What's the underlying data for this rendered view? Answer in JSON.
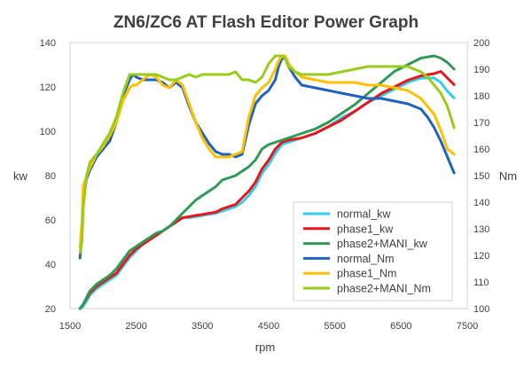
{
  "chart_data": {
    "type": "line",
    "title": "ZN6/ZC6 AT  Flash Editor Power Graph",
    "xlabel": "rpm",
    "ylabel_left": "kw",
    "ylabel_right": "Nm",
    "xlim": [
      1500,
      7500
    ],
    "ylim_left": [
      20,
      140
    ],
    "ylim_right": [
      100,
      200
    ],
    "x_ticks": [
      "1500",
      "2500",
      "3500",
      "4500",
      "5500",
      "6500",
      "7500"
    ],
    "y_ticks_left": [
      "20",
      "40",
      "60",
      "80",
      "100",
      "120",
      "140"
    ],
    "y_ticks_right": [
      "100",
      "110",
      "120",
      "130",
      "140",
      "150",
      "160",
      "170",
      "180",
      "190",
      "200"
    ],
    "grid": false,
    "legend_position": "bottom-right",
    "series": [
      {
        "name": "normal_kw",
        "axis": "left",
        "color": "#33ccee",
        "x": [
          1650,
          1700,
          1800,
          1900,
          2000,
          2100,
          2200,
          2300,
          2400,
          2500,
          2600,
          2700,
          2800,
          2900,
          3000,
          3100,
          3200,
          3300,
          3400,
          3500,
          3600,
          3700,
          3800,
          3900,
          4000,
          4100,
          4200,
          4300,
          4400,
          4500,
          4600,
          4700,
          4800,
          4900,
          5000,
          5200,
          5400,
          5600,
          5800,
          6000,
          6200,
          6400,
          6600,
          6800,
          7000,
          7100,
          7200,
          7300
        ],
        "y": [
          20,
          21,
          26,
          29,
          31,
          33,
          35,
          39,
          43,
          46,
          49,
          51,
          53,
          55,
          57,
          59,
          61,
          61,
          61.5,
          62,
          62.5,
          63,
          64,
          65,
          66,
          68,
          71,
          75,
          81,
          85,
          90,
          94,
          95,
          96,
          97,
          99,
          102,
          106,
          109,
          113,
          116,
          119,
          122,
          124,
          124,
          122,
          118,
          115
        ]
      },
      {
        "name": "phase1_kw",
        "axis": "left",
        "color": "#e8161b",
        "x": [
          1650,
          1700,
          1800,
          1900,
          2000,
          2100,
          2200,
          2300,
          2400,
          2500,
          2600,
          2700,
          2800,
          2900,
          3000,
          3100,
          3200,
          3300,
          3400,
          3500,
          3600,
          3700,
          3800,
          3900,
          4000,
          4100,
          4200,
          4300,
          4400,
          4500,
          4600,
          4700,
          4800,
          4900,
          5000,
          5200,
          5400,
          5600,
          5800,
          6000,
          6200,
          6400,
          6600,
          6800,
          7000,
          7100,
          7200,
          7300
        ],
        "y": [
          20,
          22,
          27,
          30,
          32,
          34,
          36,
          40,
          44,
          47,
          49,
          51,
          53,
          55,
          57,
          59,
          61,
          61.5,
          62,
          62.5,
          63,
          63.5,
          65,
          66,
          67,
          70,
          73,
          77,
          83,
          87,
          92,
          95,
          96,
          96.5,
          97,
          99,
          102,
          105,
          109,
          113,
          117,
          120,
          123,
          125,
          126,
          127,
          124,
          121
        ]
      },
      {
        "name": "phase2+MANI_kw",
        "axis": "left",
        "color": "#2e9a56",
        "x": [
          1650,
          1700,
          1800,
          1900,
          2000,
          2100,
          2200,
          2300,
          2400,
          2500,
          2600,
          2700,
          2800,
          2900,
          3000,
          3100,
          3200,
          3300,
          3400,
          3500,
          3600,
          3700,
          3800,
          3900,
          4000,
          4100,
          4200,
          4300,
          4400,
          4500,
          4600,
          4700,
          4800,
          4900,
          5000,
          5200,
          5400,
          5600,
          5800,
          6000,
          6200,
          6400,
          6600,
          6800,
          7000,
          7100,
          7200,
          7300
        ],
        "y": [
          20,
          22,
          28,
          31,
          33,
          35,
          38,
          42,
          46,
          48,
          50,
          52,
          54,
          55,
          57,
          60,
          63,
          66,
          69,
          71,
          73,
          75,
          78,
          79,
          80,
          82,
          84,
          87,
          92,
          94,
          95,
          96,
          97,
          98,
          99,
          101,
          104,
          108,
          112,
          117,
          122,
          127,
          130,
          133,
          134,
          133,
          131,
          128
        ]
      },
      {
        "name": "normal_Nm",
        "axis": "right",
        "color": "#1f63bf",
        "x": [
          1650,
          1680,
          1700,
          1750,
          1800,
          1900,
          2000,
          2100,
          2200,
          2300,
          2400,
          2450,
          2500,
          2600,
          2700,
          2800,
          2900,
          3000,
          3100,
          3200,
          3300,
          3400,
          3500,
          3600,
          3700,
          3800,
          3900,
          4000,
          4100,
          4200,
          4300,
          4400,
          4500,
          4600,
          4650,
          4700,
          4750,
          4800,
          4900,
          5000,
          5200,
          5400,
          5600,
          5800,
          6000,
          6200,
          6400,
          6600,
          6800,
          6900,
          7000,
          7100,
          7200,
          7300
        ],
        "y": [
          119,
          128,
          141,
          149,
          152,
          157,
          160,
          163,
          170,
          180,
          186,
          188,
          187,
          186,
          186,
          186,
          185,
          183,
          185,
          183,
          176,
          170,
          166,
          162,
          159,
          158,
          158,
          157,
          158,
          169,
          177,
          180,
          182,
          186,
          191,
          194,
          194,
          191,
          187,
          184,
          183,
          182,
          181,
          180,
          179,
          179,
          178,
          177,
          175,
          172,
          168,
          163,
          157,
          151
        ]
      },
      {
        "name": "phase1_Nm",
        "axis": "right",
        "color": "#ffc000",
        "x": [
          1650,
          1680,
          1700,
          1750,
          1800,
          1900,
          2000,
          2100,
          2200,
          2300,
          2400,
          2450,
          2500,
          2600,
          2700,
          2800,
          2900,
          3000,
          3100,
          3200,
          3300,
          3400,
          3500,
          3600,
          3700,
          3800,
          3900,
          4000,
          4100,
          4200,
          4300,
          4400,
          4500,
          4600,
          4650,
          4700,
          4750,
          4800,
          4900,
          5000,
          5200,
          5400,
          5600,
          5800,
          6000,
          6200,
          6400,
          6600,
          6800,
          6900,
          7000,
          7100,
          7200,
          7300
        ],
        "y": [
          123,
          133,
          146,
          150,
          153,
          158,
          161,
          165,
          170,
          178,
          183,
          184,
          184,
          186,
          188,
          187,
          184,
          183,
          186,
          184,
          177,
          170,
          164,
          160,
          157,
          157,
          157,
          158,
          159,
          172,
          180,
          183,
          185,
          190,
          193,
          195,
          195,
          192,
          189,
          187,
          186,
          185,
          185,
          185,
          184,
          184,
          183,
          182,
          179,
          176,
          173,
          167,
          160,
          158
        ]
      },
      {
        "name": "phase2+MANI_Nm",
        "axis": "right",
        "color": "#99cc1a",
        "x": [
          1650,
          1680,
          1700,
          1750,
          1800,
          1900,
          2000,
          2100,
          2200,
          2300,
          2400,
          2450,
          2500,
          2600,
          2700,
          2800,
          2900,
          3000,
          3100,
          3200,
          3300,
          3400,
          3500,
          3600,
          3700,
          3800,
          3900,
          4000,
          4100,
          4200,
          4300,
          4400,
          4500,
          4600,
          4650,
          4700,
          4750,
          4800,
          4900,
          5000,
          5200,
          5400,
          5600,
          5800,
          6000,
          6200,
          6400,
          6600,
          6800,
          6900,
          7000,
          7100,
          7200,
          7300
        ],
        "y": [
          121,
          125,
          138,
          150,
          155,
          158,
          162,
          166,
          172,
          181,
          188,
          188,
          188,
          188,
          188,
          188,
          187,
          186,
          186,
          187,
          188,
          187,
          188,
          188,
          188,
          188,
          188,
          189,
          186,
          186,
          185,
          187,
          192,
          195,
          195,
          195,
          194,
          191,
          189,
          188,
          188,
          188,
          189,
          190,
          191,
          191,
          191,
          191,
          189,
          187,
          184,
          181,
          176,
          168
        ]
      }
    ]
  }
}
